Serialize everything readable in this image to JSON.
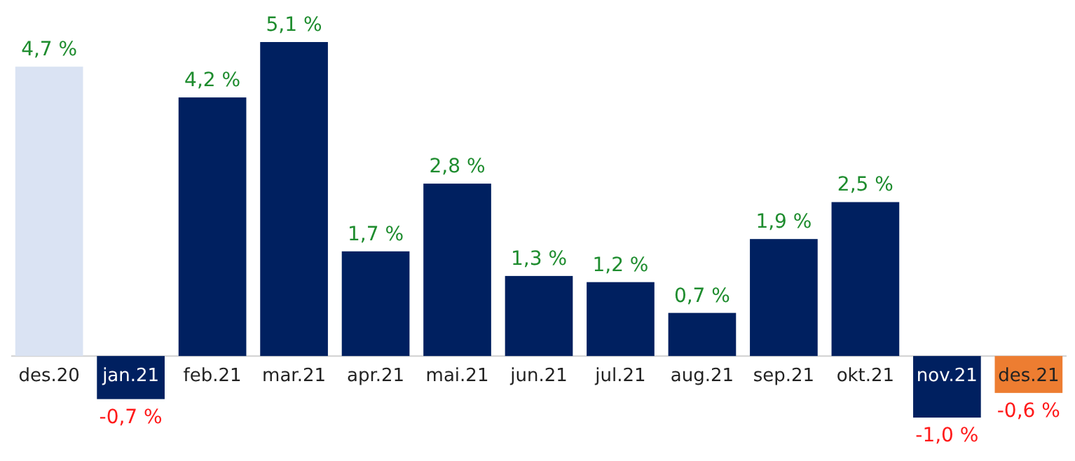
{
  "chart_data": {
    "type": "bar",
    "categories": [
      "des.20",
      "jan.21",
      "feb.21",
      "mar.21",
      "apr.21",
      "mai.21",
      "jun.21",
      "jul.21",
      "aug.21",
      "sep.21",
      "okt.21",
      "nov.21",
      "des.21"
    ],
    "values": [
      4.7,
      -0.7,
      4.2,
      5.1,
      1.7,
      2.8,
      1.3,
      1.2,
      0.7,
      1.9,
      2.5,
      -1.0,
      -0.6
    ],
    "colors": [
      "#dae3f3",
      "#002060",
      "#002060",
      "#002060",
      "#002060",
      "#002060",
      "#002060",
      "#002060",
      "#002060",
      "#002060",
      "#002060",
      "#002060",
      "#ed7d31"
    ],
    "value_labels": [
      "4,7 %",
      "-0,7 %",
      "4,2 %",
      "5,1 %",
      "1,7 %",
      "2,8 %",
      "1,3 %",
      "1,2 %",
      "0,7 %",
      "1,9 %",
      "2,5 %",
      "-1,0 %",
      "-0,6 %"
    ]
  }
}
